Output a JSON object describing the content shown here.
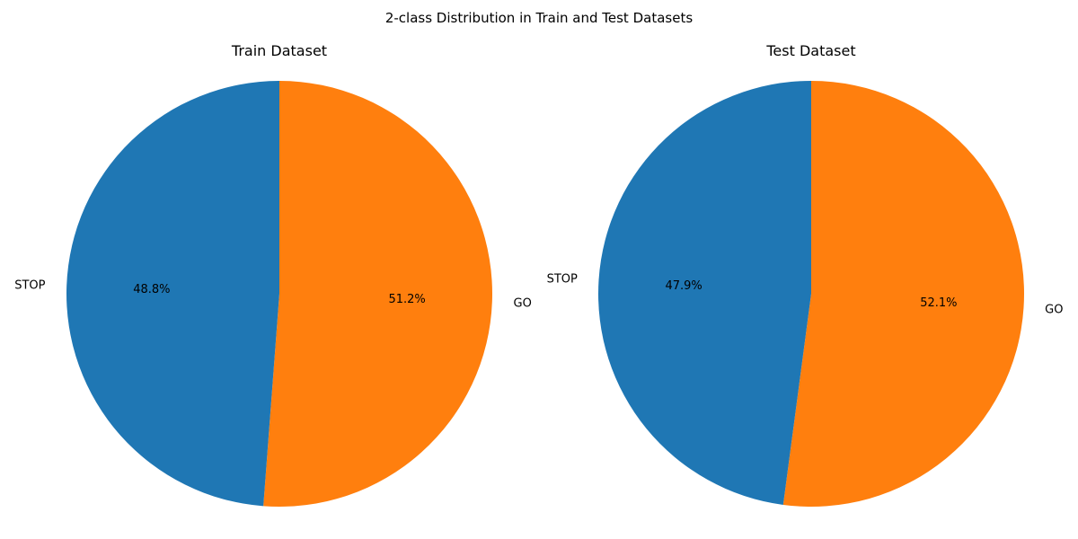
{
  "figure": {
    "title": "2-class Distribution in Train and Test Datasets"
  },
  "chart_data": [
    {
      "type": "pie",
      "title": "Train Dataset",
      "categories": [
        "STOP",
        "GO"
      ],
      "values": [
        48.8,
        51.2
      ],
      "value_labels": [
        "48.8%",
        "51.2%"
      ],
      "colors": [
        "#1f77b4",
        "#ff7f0e"
      ],
      "start_angle": "top",
      "direction": "counterclockwise"
    },
    {
      "type": "pie",
      "title": "Test Dataset",
      "categories": [
        "STOP",
        "GO"
      ],
      "values": [
        47.9,
        52.1
      ],
      "value_labels": [
        "47.9%",
        "52.1%"
      ],
      "colors": [
        "#1f77b4",
        "#ff7f0e"
      ],
      "start_angle": "top",
      "direction": "counterclockwise"
    }
  ]
}
